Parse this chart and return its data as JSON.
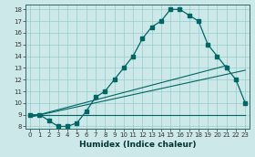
{
  "xlabel": "Humidex (Indice chaleur)",
  "bg_color": "#cce8e8",
  "grid_color": "#99cccc",
  "line_color": "#006666",
  "xlim": [
    -0.5,
    23.5
  ],
  "ylim": [
    7.8,
    18.4
  ],
  "xticks": [
    0,
    1,
    2,
    3,
    4,
    5,
    6,
    7,
    8,
    9,
    10,
    11,
    12,
    13,
    14,
    15,
    16,
    17,
    18,
    19,
    20,
    21,
    22,
    23
  ],
  "yticks": [
    8,
    9,
    10,
    11,
    12,
    13,
    14,
    15,
    16,
    17,
    18
  ],
  "curve1_x": [
    0,
    1,
    2,
    3,
    4,
    5,
    6,
    7,
    8,
    9,
    10,
    11,
    12,
    13,
    14,
    15,
    16,
    17,
    18,
    19,
    20,
    21,
    22,
    23
  ],
  "curve1_y": [
    9.0,
    9.0,
    8.5,
    8.0,
    8.0,
    8.3,
    9.3,
    10.5,
    11.0,
    12.0,
    13.0,
    14.0,
    15.5,
    16.5,
    17.0,
    18.0,
    18.0,
    17.5,
    17.0,
    15.0,
    14.0,
    13.0,
    12.0,
    10.0
  ],
  "line1_x": [
    0,
    23
  ],
  "line1_y": [
    9.0,
    9.0
  ],
  "line2_x": [
    0,
    23
  ],
  "line2_y": [
    8.8,
    12.8
  ],
  "line3_x": [
    0,
    21
  ],
  "line3_y": [
    8.8,
    13.2
  ]
}
